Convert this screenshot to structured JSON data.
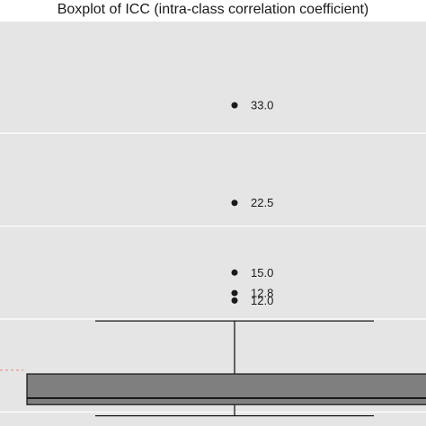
{
  "title": "Boxplot of ICC (intra-class correlation coefficient)",
  "colors": {
    "panel": "#e5e5e5",
    "grid": "#ffffff",
    "box_fill": "#7f7f7f",
    "outline": "#1a1a1a",
    "reference_line": "#e8837c"
  },
  "chart_data": {
    "type": "boxplot",
    "title": "Boxplot of ICC (intra-class correlation coefficient)",
    "xlabel": "",
    "ylabel": "",
    "grid": true,
    "box": {
      "q1": 0.8,
      "median": 1.5,
      "q3": 4.1,
      "whisker_low": -0.4,
      "whisker_high": 9.8
    },
    "outliers": [
      {
        "value": 33.0,
        "label": "33.0"
      },
      {
        "value": 22.5,
        "label": "22.5"
      },
      {
        "value": 15.0,
        "label": "15.0"
      },
      {
        "value": 12.8,
        "label": "12.8"
      },
      {
        "value": 12.0,
        "label": "12.0"
      }
    ],
    "gridlines": [
      0,
      10,
      20,
      30
    ],
    "reference_line": 4.5,
    "ylim": [
      -1.5,
      42
    ]
  }
}
